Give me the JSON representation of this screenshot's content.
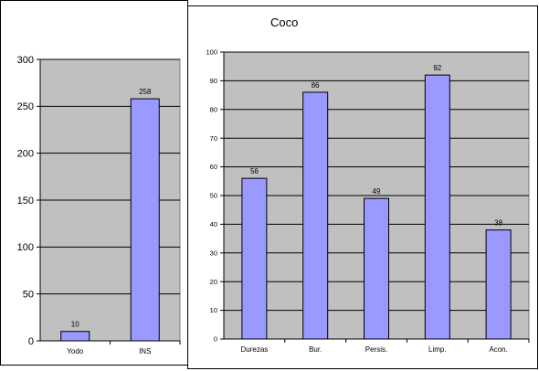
{
  "chart_data": [
    {
      "type": "bar",
      "title": "",
      "xlabel": "",
      "ylabel": "",
      "categories": [
        "Yodo",
        "INS"
      ],
      "values": [
        10,
        258
      ],
      "data_labels": [
        "10",
        "258"
      ],
      "ylim": [
        0,
        300
      ],
      "yticks": [
        0,
        50,
        100,
        150,
        200,
        250,
        300
      ],
      "grid": true,
      "legend": "none",
      "bar_color": "#9999ff",
      "plot_bg": "#c0c0c0"
    },
    {
      "type": "bar",
      "title": "Coco",
      "xlabel": "",
      "ylabel": "",
      "categories": [
        "Durezas",
        "Bur.",
        "Persis.",
        "Limp.",
        "Acon."
      ],
      "values": [
        56,
        86,
        49,
        92,
        38
      ],
      "data_labels": [
        "56",
        "86",
        "49",
        "92",
        "38"
      ],
      "ylim": [
        0,
        100
      ],
      "yticks": [
        0,
        10,
        20,
        30,
        40,
        50,
        60,
        70,
        80,
        90,
        100
      ],
      "grid": true,
      "legend": "none",
      "bar_color": "#9999ff",
      "plot_bg": "#c0c0c0"
    }
  ]
}
